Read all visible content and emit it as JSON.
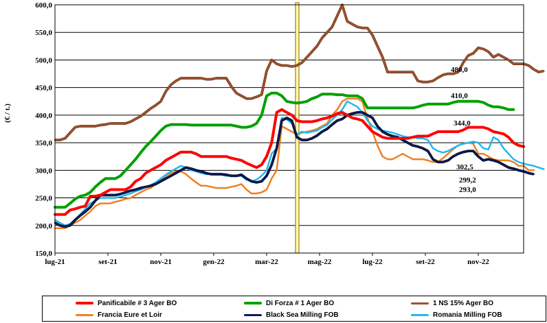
{
  "chart_data": {
    "type": "line",
    "ylabel": "(€ / t.)",
    "ylim": [
      150,
      600
    ],
    "yticks": [
      "150,0",
      "200,0",
      "250,0",
      "300,0",
      "350,0",
      "400,0",
      "450,0",
      "500,0",
      "550,0",
      "600,0"
    ],
    "xticks": [
      "lug-21",
      "set-21",
      "nov-21",
      "gen-22",
      "mar-22",
      "mag-22",
      "lug-22",
      "set-22",
      "nov-22"
    ],
    "highlight_week": 48,
    "series": [
      {
        "name": "Panificabile # 3 Ager BO",
        "color": "#ff0000",
        "width": 4,
        "values": [
          220,
          220,
          220,
          228,
          230,
          233,
          235,
          253,
          253,
          255,
          260,
          265,
          265,
          265,
          265,
          270,
          280,
          285,
          295,
          300,
          305,
          310,
          318,
          323,
          328,
          333,
          333,
          333,
          330,
          325,
          325,
          325,
          325,
          325,
          325,
          322,
          320,
          318,
          313,
          309,
          305,
          310,
          325,
          350,
          405,
          410,
          405,
          400,
          390,
          388,
          388,
          388,
          390,
          393,
          395,
          398,
          403,
          405,
          400,
          395,
          393,
          390,
          380,
          370,
          365,
          360,
          358,
          358,
          358,
          358,
          358,
          360,
          362,
          362,
          362,
          366,
          370,
          370,
          370,
          370,
          370,
          373,
          378,
          378,
          378,
          378,
          375,
          370,
          368,
          366,
          360,
          350,
          345,
          343
        ]
      },
      {
        "name": "Di Forza # 1 Ager BO",
        "color": "#00a000",
        "width": 4,
        "values": [
          233,
          233,
          233,
          240,
          248,
          253,
          255,
          260,
          270,
          278,
          285,
          285,
          285,
          290,
          300,
          310,
          320,
          332,
          343,
          352,
          362,
          372,
          380,
          383,
          383,
          383,
          383,
          382,
          382,
          382,
          382,
          382,
          382,
          382,
          382,
          382,
          380,
          378,
          378,
          380,
          385,
          400,
          435,
          440,
          440,
          435,
          425,
          423,
          422,
          423,
          425,
          430,
          433,
          438,
          438,
          438,
          437,
          437,
          435,
          435,
          435,
          430,
          413,
          413,
          413,
          413,
          413,
          413,
          413,
          413,
          413,
          413,
          415,
          418,
          420,
          420,
          420,
          420,
          420,
          423,
          425,
          425,
          425,
          425,
          425,
          423,
          418,
          415,
          415,
          413,
          410,
          410
        ]
      },
      {
        "name": "1 NS 15% Ager BO",
        "color": "#a0522d",
        "width": 2.5,
        "values": [
          355,
          355,
          358,
          368,
          378,
          380,
          380,
          380,
          380,
          382,
          383,
          385,
          385,
          385,
          385,
          388,
          393,
          398,
          405,
          412,
          418,
          425,
          443,
          455,
          462,
          467,
          467,
          467,
          467,
          467,
          465,
          465,
          467,
          467,
          467,
          452,
          440,
          435,
          430,
          430,
          433,
          437,
          480,
          500,
          493,
          490,
          490,
          488,
          490,
          495,
          505,
          515,
          525,
          540,
          550,
          560,
          580,
          600,
          570,
          565,
          560,
          558,
          558,
          545,
          525,
          505,
          478,
          478,
          478,
          478,
          478,
          478,
          462,
          460,
          460,
          462,
          468,
          473,
          475,
          475,
          478,
          495,
          508,
          512,
          522,
          520,
          515,
          505,
          510,
          505,
          500,
          493,
          493,
          493,
          490,
          483,
          478,
          480
        ]
      },
      {
        "name": "Francia Eure et Loir",
        "color": "#f08020",
        "width": 2.5,
        "values": [
          195,
          195,
          195,
          200,
          205,
          210,
          218,
          225,
          235,
          240,
          240,
          240,
          243,
          245,
          248,
          250,
          255,
          260,
          265,
          268,
          275,
          283,
          290,
          295,
          298,
          298,
          293,
          285,
          278,
          272,
          272,
          270,
          268,
          268,
          268,
          270,
          272,
          275,
          265,
          258,
          258,
          260,
          265,
          285,
          300,
          380,
          375,
          370,
          365,
          368,
          370,
          372,
          375,
          380,
          385,
          400,
          410,
          425,
          430,
          430,
          430,
          425,
          395,
          370,
          345,
          325,
          320,
          320,
          325,
          330,
          325,
          320,
          320,
          320,
          318,
          315,
          315,
          322,
          330,
          338,
          345,
          348,
          350,
          348,
          330,
          330,
          325,
          320,
          318,
          318,
          318,
          315,
          308,
          308,
          300,
          300
        ]
      },
      {
        "name": "Black Sea Milling FOB",
        "color": "#0a1a5e",
        "width": 2.5,
        "values": [
          205,
          200,
          198,
          200,
          210,
          218,
          225,
          233,
          245,
          255,
          255,
          255,
          255,
          257,
          260,
          263,
          265,
          268,
          270,
          272,
          275,
          280,
          285,
          290,
          295,
          300,
          305,
          303,
          300,
          298,
          295,
          293,
          293,
          293,
          292,
          290,
          290,
          292,
          285,
          280,
          278,
          280,
          290,
          310,
          340,
          390,
          395,
          390,
          360,
          355,
          355,
          358,
          363,
          370,
          375,
          383,
          390,
          393,
          400,
          403,
          405,
          405,
          400,
          395,
          380,
          370,
          365,
          362,
          360,
          355,
          350,
          345,
          343,
          340,
          335,
          320,
          315,
          315,
          318,
          325,
          330,
          333,
          335,
          335,
          325,
          318,
          320,
          318,
          315,
          310,
          305,
          303,
          300,
          298,
          295,
          293
        ]
      },
      {
        "name": "Romania Milling FOB",
        "color": "#20b8f0",
        "width": 2.5,
        "values": [
          210,
          205,
          200,
          203,
          210,
          220,
          230,
          240,
          245,
          250,
          250,
          250,
          250,
          252,
          255,
          258,
          262,
          265,
          270,
          273,
          278,
          285,
          292,
          298,
          303,
          308,
          305,
          300,
          298,
          295,
          293,
          293,
          292,
          292,
          290,
          290,
          290,
          290,
          283,
          280,
          283,
          290,
          300,
          330,
          340,
          395,
          392,
          385,
          365,
          370,
          368,
          370,
          372,
          378,
          382,
          392,
          400,
          410,
          425,
          420,
          415,
          405,
          390,
          380,
          375,
          372,
          370,
          368,
          365,
          362,
          360,
          360,
          358,
          358,
          355,
          340,
          335,
          332,
          335,
          340,
          345,
          348,
          350,
          352,
          350,
          340,
          338,
          360,
          355,
          340,
          330,
          320,
          315,
          312,
          310,
          308,
          305,
          302
        ]
      }
    ],
    "annotations": [
      {
        "text": "480,0",
        "value": 480
      },
      {
        "text": "410,0",
        "value": 410
      },
      {
        "text": "344,0",
        "value": 344
      },
      {
        "text": "302,5",
        "value": 302.5
      },
      {
        "text": "299,2",
        "value": 299.2
      },
      {
        "text": "293,0",
        "value": 293
      }
    ]
  }
}
